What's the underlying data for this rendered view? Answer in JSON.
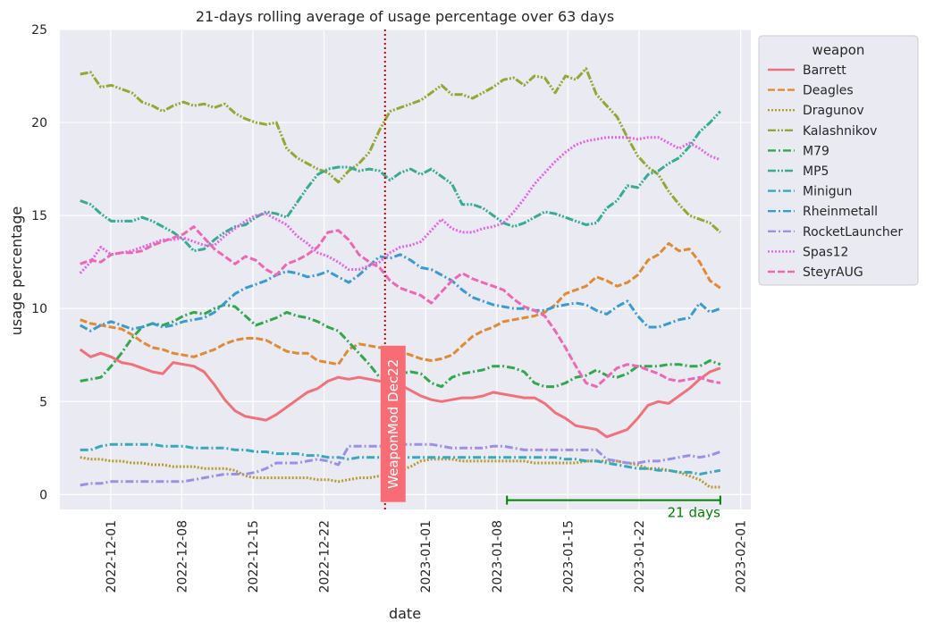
{
  "chart_data": {
    "type": "line",
    "title": "21-days rolling average of usage percentage over 63 days",
    "xlabel": "date",
    "ylabel": "usage percentage",
    "x_start": "2022-11-28",
    "x_end": "2023-01-30",
    "xlim": [
      "2022-11-26",
      "2023-02-02"
    ],
    "ylim": [
      -0.8,
      25
    ],
    "xticks": [
      "2022-12-01",
      "2022-12-08",
      "2022-12-15",
      "2022-12-22",
      "2023-01-01",
      "2023-01-08",
      "2023-01-15",
      "2023-01-22",
      "2023-02-01"
    ],
    "yticks": [
      0,
      5,
      10,
      15,
      20,
      25
    ],
    "grid": true,
    "legend": {
      "title": "weapon",
      "position": "outside-right"
    },
    "series": [
      {
        "name": "Barrett",
        "color": "#f0717a",
        "dash": "solid",
        "values": [
          7.8,
          7.4,
          7.6,
          7.4,
          7.1,
          7.0,
          6.8,
          6.6,
          6.5,
          7.1,
          7.0,
          6.9,
          6.6,
          5.9,
          5.1,
          4.5,
          4.2,
          4.1,
          4.0,
          4.3,
          4.7,
          5.1,
          5.5,
          5.7,
          6.1,
          6.3,
          6.2,
          6.3,
          6.2,
          6.1,
          6.0,
          5.9,
          5.6,
          5.3,
          5.1,
          5.0,
          5.1,
          5.2,
          5.2,
          5.3,
          5.5,
          5.4,
          5.3,
          5.2,
          5.2,
          4.9,
          4.4,
          4.1,
          3.7,
          3.6,
          3.5,
          3.1,
          3.3,
          3.5,
          4.1,
          4.8,
          5.0,
          4.9,
          5.3,
          5.7,
          6.2,
          6.6,
          6.8
        ]
      },
      {
        "name": "Deagles",
        "color": "#e08a35",
        "dash": "dashed",
        "values": [
          9.4,
          9.2,
          9.1,
          9.0,
          8.9,
          8.6,
          8.2,
          7.9,
          7.8,
          7.6,
          7.5,
          7.4,
          7.6,
          7.8,
          8.1,
          8.3,
          8.4,
          8.4,
          8.3,
          8.0,
          7.7,
          7.6,
          7.6,
          7.2,
          7.1,
          7.0,
          7.8,
          8.1,
          8.0,
          7.9,
          7.9,
          7.7,
          7.5,
          7.3,
          7.2,
          7.3,
          7.5,
          8.0,
          8.5,
          8.8,
          9.0,
          9.3,
          9.4,
          9.5,
          9.6,
          9.8,
          10.2,
          10.8,
          11.0,
          11.2,
          11.7,
          11.5,
          11.2,
          11.4,
          11.8,
          12.6,
          12.9,
          13.5,
          13.1,
          13.2,
          12.5,
          11.5,
          11.1
        ]
      },
      {
        "name": "Dragunov",
        "color": "#b59b2c",
        "dash": "dotted",
        "values": [
          2.0,
          1.9,
          1.9,
          1.8,
          1.8,
          1.7,
          1.7,
          1.6,
          1.6,
          1.5,
          1.5,
          1.5,
          1.4,
          1.4,
          1.4,
          1.3,
          1.0,
          0.9,
          0.9,
          0.9,
          0.9,
          0.9,
          0.9,
          0.8,
          0.8,
          0.7,
          0.8,
          0.9,
          0.9,
          1.0,
          1.0,
          1.3,
          1.5,
          1.8,
          1.9,
          1.9,
          1.9,
          1.8,
          1.8,
          1.8,
          1.8,
          1.8,
          1.8,
          1.8,
          1.7,
          1.7,
          1.7,
          1.7,
          1.7,
          1.8,
          1.8,
          1.8,
          1.8,
          1.7,
          1.6,
          1.4,
          1.4,
          1.3,
          1.2,
          1.0,
          0.8,
          0.4,
          0.4
        ]
      },
      {
        "name": "Kalashnikov",
        "color": "#93a834",
        "dash": "dashdotdot",
        "values": [
          22.6,
          22.7,
          21.9,
          22.0,
          21.8,
          21.6,
          21.1,
          20.9,
          20.6,
          20.9,
          21.1,
          20.9,
          21.0,
          20.8,
          21.0,
          20.5,
          20.2,
          20.0,
          19.9,
          20.0,
          18.6,
          18.1,
          17.8,
          17.5,
          17.3,
          16.8,
          17.4,
          17.8,
          18.4,
          19.6,
          20.6,
          20.8,
          21.0,
          21.2,
          21.6,
          22.0,
          21.5,
          21.5,
          21.3,
          21.6,
          21.9,
          22.3,
          22.4,
          22.0,
          22.5,
          22.4,
          21.6,
          22.5,
          22.3,
          22.9,
          21.5,
          20.9,
          20.3,
          19.2,
          18.2,
          17.6,
          17.2,
          16.3,
          15.6,
          15.0,
          14.8,
          14.6,
          14.1
        ]
      },
      {
        "name": "M79",
        "color": "#33a74f",
        "dash": "dashdot",
        "values": [
          6.1,
          6.2,
          6.3,
          6.9,
          7.6,
          8.4,
          9.0,
          9.2,
          9.1,
          9.3,
          9.6,
          9.8,
          9.7,
          10.0,
          10.2,
          10.1,
          9.6,
          9.1,
          9.3,
          9.5,
          9.8,
          9.6,
          9.5,
          9.3,
          9.0,
          8.8,
          8.2,
          7.6,
          7.0,
          6.3,
          6.3,
          6.5,
          6.6,
          6.5,
          6.0,
          5.8,
          6.3,
          6.5,
          6.6,
          6.7,
          6.9,
          6.9,
          6.8,
          6.6,
          6.0,
          5.8,
          5.8,
          6.0,
          6.3,
          6.4,
          6.7,
          6.4,
          6.3,
          6.5,
          6.9,
          6.9,
          6.9,
          7.0,
          7.0,
          6.9,
          6.9,
          7.2,
          7.0
        ]
      },
      {
        "name": "MP5",
        "color": "#37ab94",
        "dash": "dashdotdot",
        "values": [
          15.8,
          15.6,
          15.1,
          14.7,
          14.7,
          14.7,
          14.9,
          14.7,
          14.4,
          14.1,
          13.7,
          13.1,
          13.2,
          13.7,
          14.1,
          14.4,
          14.5,
          14.9,
          15.2,
          15.1,
          14.9,
          15.7,
          16.5,
          17.2,
          17.5,
          17.6,
          17.6,
          17.4,
          17.5,
          17.4,
          16.9,
          17.3,
          17.5,
          17.2,
          17.5,
          17.1,
          16.7,
          15.6,
          15.6,
          15.4,
          15.0,
          14.6,
          14.4,
          14.6,
          14.9,
          15.2,
          15.1,
          14.9,
          14.7,
          14.5,
          14.6,
          15.4,
          15.8,
          16.6,
          16.5,
          17.2,
          17.4,
          17.8,
          18.1,
          18.7,
          19.5,
          20.0,
          20.6
        ]
      },
      {
        "name": "Minigun",
        "color": "#38a8bd",
        "dash": "dashdot",
        "values": [
          2.4,
          2.4,
          2.6,
          2.7,
          2.7,
          2.7,
          2.7,
          2.7,
          2.6,
          2.6,
          2.6,
          2.5,
          2.5,
          2.5,
          2.5,
          2.4,
          2.4,
          2.3,
          2.3,
          2.2,
          2.2,
          2.2,
          2.1,
          2.1,
          2.0,
          2.0,
          1.9,
          2.0,
          2.0,
          2.0,
          2.0,
          2.0,
          2.0,
          2.0,
          2.0,
          2.0,
          2.0,
          2.0,
          2.0,
          2.0,
          2.0,
          2.0,
          2.0,
          2.0,
          2.0,
          2.0,
          2.0,
          1.9,
          1.9,
          1.8,
          1.8,
          1.7,
          1.6,
          1.5,
          1.4,
          1.4,
          1.3,
          1.3,
          1.2,
          1.2,
          1.1,
          1.2,
          1.3
        ]
      },
      {
        "name": "Rheinmetall",
        "color": "#3a9ad3",
        "dash": "dashdot",
        "values": [
          9.1,
          8.8,
          9.1,
          9.3,
          9.1,
          8.9,
          9.0,
          9.2,
          9.0,
          9.1,
          9.3,
          9.4,
          9.5,
          9.8,
          10.3,
          10.8,
          11.1,
          11.3,
          11.5,
          11.8,
          12.0,
          11.9,
          11.7,
          11.8,
          12.0,
          11.7,
          11.4,
          11.8,
          12.3,
          12.8,
          12.7,
          12.9,
          12.6,
          12.2,
          12.1,
          11.8,
          11.5,
          11.0,
          10.6,
          10.4,
          10.2,
          10.1,
          10.0,
          10.0,
          9.9,
          9.9,
          10.1,
          10.2,
          10.3,
          10.2,
          9.9,
          9.7,
          10.1,
          10.4,
          9.6,
          9.0,
          9.0,
          9.2,
          9.4,
          9.5,
          10.3,
          9.8,
          10.0
        ]
      },
      {
        "name": "RocketLauncher",
        "color": "#9a90e8",
        "dash": "dashdot",
        "values": [
          0.5,
          0.6,
          0.6,
          0.7,
          0.7,
          0.7,
          0.7,
          0.7,
          0.7,
          0.7,
          0.7,
          0.8,
          0.9,
          1.0,
          1.1,
          1.1,
          1.1,
          1.2,
          1.4,
          1.7,
          1.7,
          1.7,
          1.8,
          1.9,
          1.8,
          1.6,
          2.6,
          2.6,
          2.6,
          2.6,
          2.7,
          2.7,
          2.7,
          2.7,
          2.7,
          2.6,
          2.5,
          2.5,
          2.5,
          2.5,
          2.6,
          2.6,
          2.5,
          2.4,
          2.4,
          2.4,
          2.4,
          2.4,
          2.4,
          2.4,
          2.4,
          1.9,
          1.8,
          1.7,
          1.7,
          1.8,
          1.8,
          1.9,
          2.0,
          2.1,
          2.0,
          2.1,
          2.3
        ]
      },
      {
        "name": "Spas12",
        "color": "#e065e7",
        "dash": "dotted",
        "values": [
          11.9,
          12.5,
          13.3,
          12.9,
          13.0,
          13.1,
          13.3,
          13.5,
          13.7,
          13.7,
          13.8,
          13.6,
          13.4,
          13.4,
          13.9,
          14.3,
          14.7,
          15.0,
          15.1,
          14.8,
          14.5,
          13.9,
          13.5,
          13.0,
          12.8,
          12.5,
          12.1,
          12.1,
          12.3,
          12.5,
          13.0,
          13.3,
          13.4,
          13.6,
          14.2,
          14.8,
          14.3,
          14.1,
          14.1,
          14.3,
          14.4,
          14.6,
          15.2,
          15.9,
          16.7,
          17.3,
          17.9,
          18.4,
          18.8,
          19.0,
          19.1,
          19.2,
          19.2,
          19.2,
          19.1,
          19.2,
          19.2,
          18.9,
          18.6,
          18.9,
          18.6,
          18.2,
          18.0
        ]
      },
      {
        "name": "SteyrAUG",
        "color": "#ee67b4",
        "dash": "dashed",
        "values": [
          12.4,
          12.6,
          12.5,
          12.9,
          13.0,
          13.0,
          13.1,
          13.4,
          13.6,
          13.8,
          14.0,
          14.4,
          13.8,
          13.2,
          12.8,
          12.4,
          12.8,
          12.6,
          12.1,
          11.8,
          12.4,
          12.6,
          12.9,
          13.3,
          14.1,
          14.2,
          13.7,
          12.9,
          12.5,
          12.2,
          11.5,
          11.1,
          10.9,
          10.7,
          10.3,
          10.9,
          11.5,
          11.9,
          11.6,
          11.4,
          11.2,
          11.0,
          10.5,
          10.1,
          9.9,
          9.6,
          8.8,
          7.9,
          6.9,
          6.0,
          5.8,
          6.3,
          6.8,
          7.0,
          6.9,
          6.7,
          6.5,
          6.2,
          6.1,
          6.2,
          6.3,
          6.1,
          6.0
        ]
      }
    ],
    "annotations": [
      {
        "type": "vline",
        "date": "2022-12-28",
        "color": "#cc0000",
        "style": "dotted"
      },
      {
        "type": "label",
        "text": "WeaponMod Dec22",
        "date": "2022-12-28",
        "y": 3.8,
        "background": "#f86c75",
        "color": "#ffffff",
        "rotation": 90
      },
      {
        "type": "span",
        "text": "21 days",
        "from": "2023-01-09",
        "to": "2023-01-30",
        "y": -0.3,
        "color": "#008000"
      }
    ]
  }
}
